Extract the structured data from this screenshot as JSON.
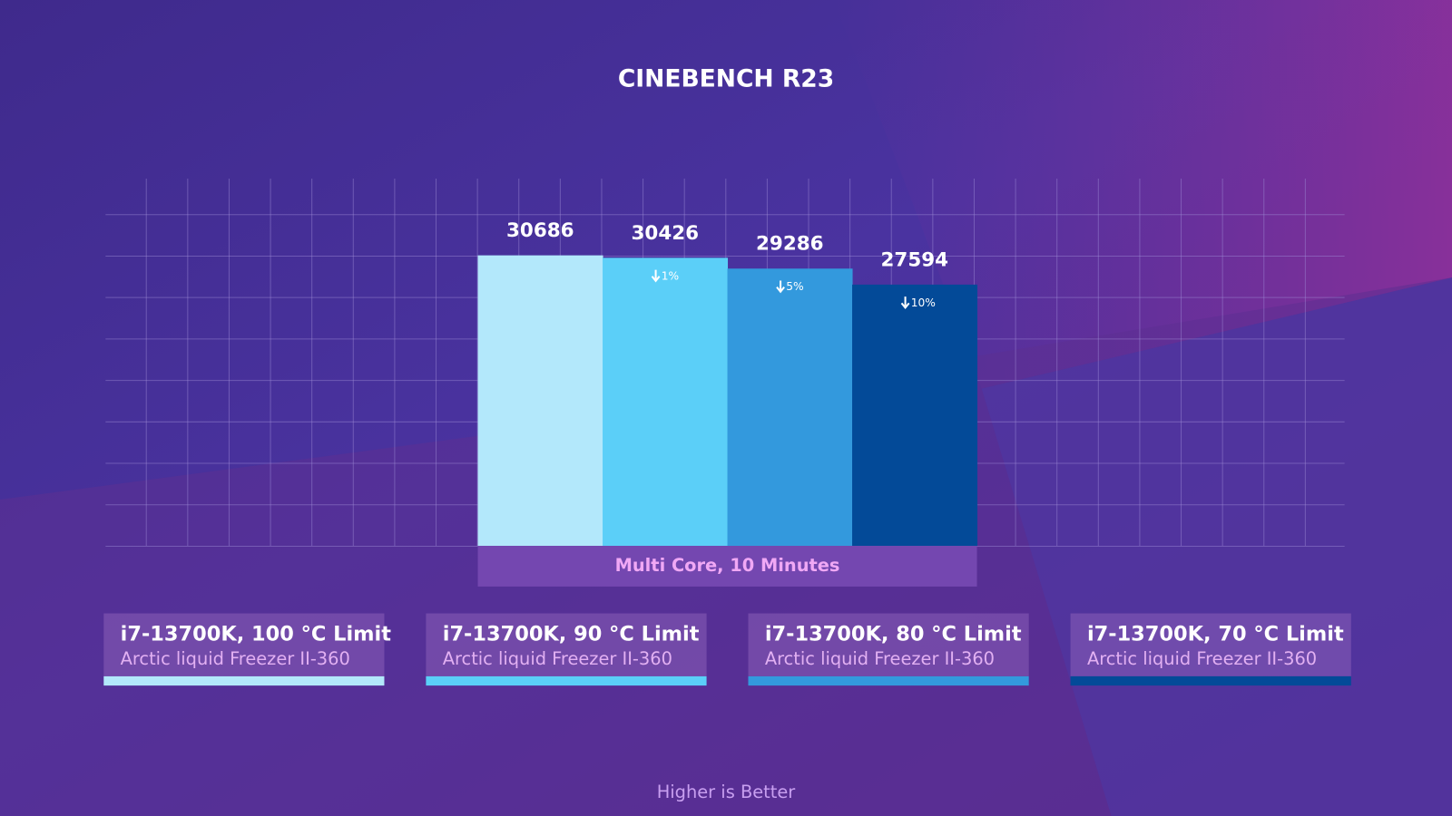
{
  "chart_data": {
    "type": "bar",
    "title": "CINEBENCH R23",
    "categories": [
      "Multi Core, 10 Minutes"
    ],
    "series": [
      {
        "name": "i7-13700K, 100 °C Limit",
        "cooler": "Arctic liquid Freezer II-360",
        "color": "#b3e8fb",
        "values": [
          30686
        ]
      },
      {
        "name": "i7-13700K, 90 °C Limit",
        "cooler": "Arctic liquid Freezer II-360",
        "color": "#5bcff8",
        "values": [
          30426
        ],
        "annotation": "1%"
      },
      {
        "name": "i7-13700K, 80 °C Limit",
        "cooler": "Arctic liquid Freezer II-360",
        "color": "#3399dd",
        "values": [
          29286
        ],
        "annotation": "5%"
      },
      {
        "name": "i7-13700K, 70 °C Limit",
        "cooler": "Arctic liquid Freezer II-360",
        "color": "#034a98",
        "values": [
          27594
        ],
        "annotation": "10%"
      }
    ],
    "note": "Higher is Better",
    "grid": true
  }
}
